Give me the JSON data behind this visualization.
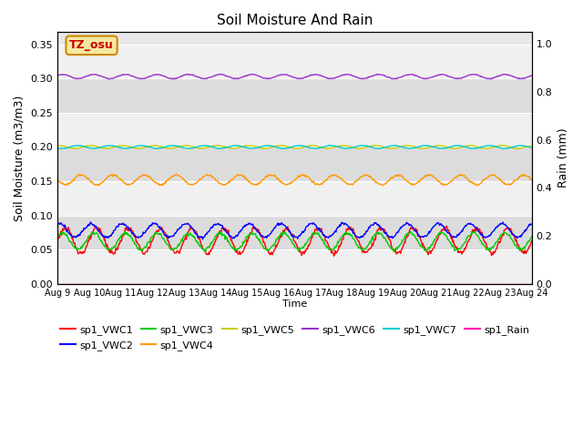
{
  "title": "Soil Moisture And Rain",
  "xlabel": "Time",
  "ylabel_left": "Soil Moisture (m3/m3)",
  "ylabel_right": "Rain (mm)",
  "annotation_text": "TZ_osu",
  "annotation_bg": "#f5e8a0",
  "annotation_border": "#cc8800",
  "annotation_text_color": "#cc0000",
  "n_points": 720,
  "ylim_left": [
    0.0,
    0.3679
  ],
  "ylim_right": [
    0.0,
    1.05
  ],
  "series": {
    "sp1_VWC1": {
      "color": "#ff0000",
      "base": 0.063,
      "amplitude": 0.018,
      "period_days": 1.0,
      "phase": 0.0
    },
    "sp1_VWC2": {
      "color": "#0000ff",
      "base": 0.078,
      "amplitude": 0.01,
      "period_days": 1.0,
      "phase": 0.2
    },
    "sp1_VWC3": {
      "color": "#00cc00",
      "base": 0.062,
      "amplitude": 0.012,
      "period_days": 1.0,
      "phase": 0.1
    },
    "sp1_VWC4": {
      "color": "#ff9900",
      "base": 0.152,
      "amplitude": 0.007,
      "period_days": 1.0,
      "phase": 0.5
    },
    "sp1_VWC5": {
      "color": "#cccc00",
      "base": 0.2,
      "amplitude": 0.002,
      "period_days": 1.0,
      "phase": 0.2
    },
    "sp1_VWC6": {
      "color": "#9933cc",
      "base": 0.303,
      "amplitude": 0.003,
      "period_days": 1.0,
      "phase": 0.1
    },
    "sp1_VWC7": {
      "color": "#00cccc",
      "base": 0.2,
      "amplitude": 0.002,
      "period_days": 1.0,
      "phase": 0.6
    },
    "sp1_Rain": {
      "color": "#ff00aa",
      "base": 0.0,
      "amplitude": 0.0,
      "period_days": 1.0,
      "phase": 0.0
    }
  },
  "legend_order": [
    "sp1_VWC1",
    "sp1_VWC2",
    "sp1_VWC3",
    "sp1_VWC4",
    "sp1_VWC5",
    "sp1_VWC6",
    "sp1_VWC7",
    "sp1_Rain"
  ],
  "xtick_labels": [
    "Aug 9",
    "Aug 10",
    "Aug 11",
    "Aug 12",
    "Aug 13",
    "Aug 14",
    "Aug 15",
    "Aug 16",
    "Aug 17",
    "Aug 18",
    "Aug 19",
    "Aug 20",
    "Aug 21",
    "Aug 22",
    "Aug 23",
    "Aug 24"
  ],
  "yticks_left": [
    0.0,
    0.05,
    0.1,
    0.15,
    0.2,
    0.25,
    0.3,
    0.35
  ],
  "yticks_right": [
    0.0,
    0.2,
    0.4,
    0.6,
    0.8,
    1.0
  ],
  "band_colors": [
    "#f0f0f0",
    "#dcdcdc"
  ],
  "grid_line_color": "#ffffff"
}
